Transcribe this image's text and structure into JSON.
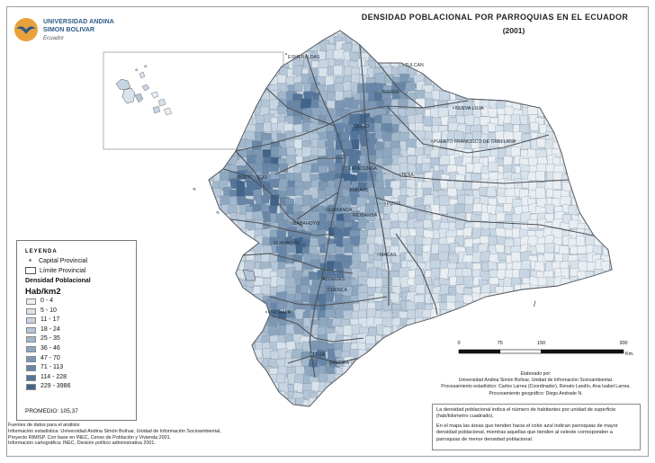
{
  "logo": {
    "line1": "UNIVERSIDAD ANDINA",
    "line2": "SIMON BOLIVAR",
    "line3": "Ecuador"
  },
  "title": "DENSIDAD POBLACIONAL POR PARROQUIAS EN EL ECUADOR",
  "subtitle": "(2001)",
  "colors": {
    "class_ramp": [
      "#e9eef3",
      "#d9e3ec",
      "#c7d5e2",
      "#b4c6d7",
      "#a1b7cc",
      "#8ea7c0",
      "#7c97b4",
      "#6886a7",
      "#55769a",
      "#41648c"
    ],
    "province_border": "#4f5257",
    "ocean": "#ffffff"
  },
  "cities": [
    {
      "name": "ESMERALDAS"
    },
    {
      "name": "TULCAN"
    },
    {
      "name": "IBARRA"
    },
    {
      "name": "NUEVA LOJA"
    },
    {
      "name": "QUITO"
    },
    {
      "name": "PUERTO FRANCISCO DE ORELLANA"
    },
    {
      "name": "LATACUNGA"
    },
    {
      "name": "TENA"
    },
    {
      "name": "PORTOVIEJO"
    },
    {
      "name": "AMBATO"
    },
    {
      "name": "PUYO"
    },
    {
      "name": "GUARANDA"
    },
    {
      "name": "RIOBAMBA"
    },
    {
      "name": "BABAHOYO"
    },
    {
      "name": "GUAYAQUIL"
    },
    {
      "name": "MACAS"
    },
    {
      "name": "AZOGUES"
    },
    {
      "name": "CUENCA"
    },
    {
      "name": "MACHALA"
    },
    {
      "name": "LOJA"
    },
    {
      "name": "ZAMORA"
    }
  ],
  "legend": {
    "title": "LEYENDA",
    "capital": "Capital Provincial",
    "limit": "Límite Provincial",
    "density": "Densidad Poblacional",
    "unit": "Hab/km2",
    "classes": [
      "0 - 4",
      "5 - 10",
      "11 - 17",
      "18 - 24",
      "25 - 35",
      "36 - 46",
      "47 - 70",
      "71 - 113",
      "114 - 228",
      "229 - 3986"
    ],
    "average": "PROMEDIO: 105,37"
  },
  "scale": {
    "ticks": [
      "0",
      "75",
      "150",
      "300"
    ],
    "tick_values": [
      0,
      75,
      150,
      300
    ],
    "unit": "Km."
  },
  "credits": [
    "Elaborado por:",
    "Universidad Andina Simón Bolívar, Unidad de Información Socioambiental.",
    "Procesamiento estadístico: Carlos Larrea (Coordinador), Renato Landín, Ana Isabel Larrea.",
    "Procesamiento geográfico: Diego Andrade N."
  ],
  "note": [
    "La densidad poblacional indica el número de habitantes por unidad de superficie (hab/kilometro cuadrado).",
    "En el mapa las áreas que tienden hacia el color azul indican parroquias de mayor densidad poblacional, mientras aquellas que tienden al celeste corresponden a parroquias de menor densidad poblacional."
  ],
  "sources": [
    "Fuentes de datos para el análisis:",
    "Información estadística: Universidad Andina Simón Bolívar, Unidad de Información Socioambiental,",
    "Proyecto RIMISP. Con base en INEC, Censo de Población y Vivienda 2001.",
    "Información cartográfica: INEC, División político administrativa 2001."
  ],
  "mark": "/"
}
